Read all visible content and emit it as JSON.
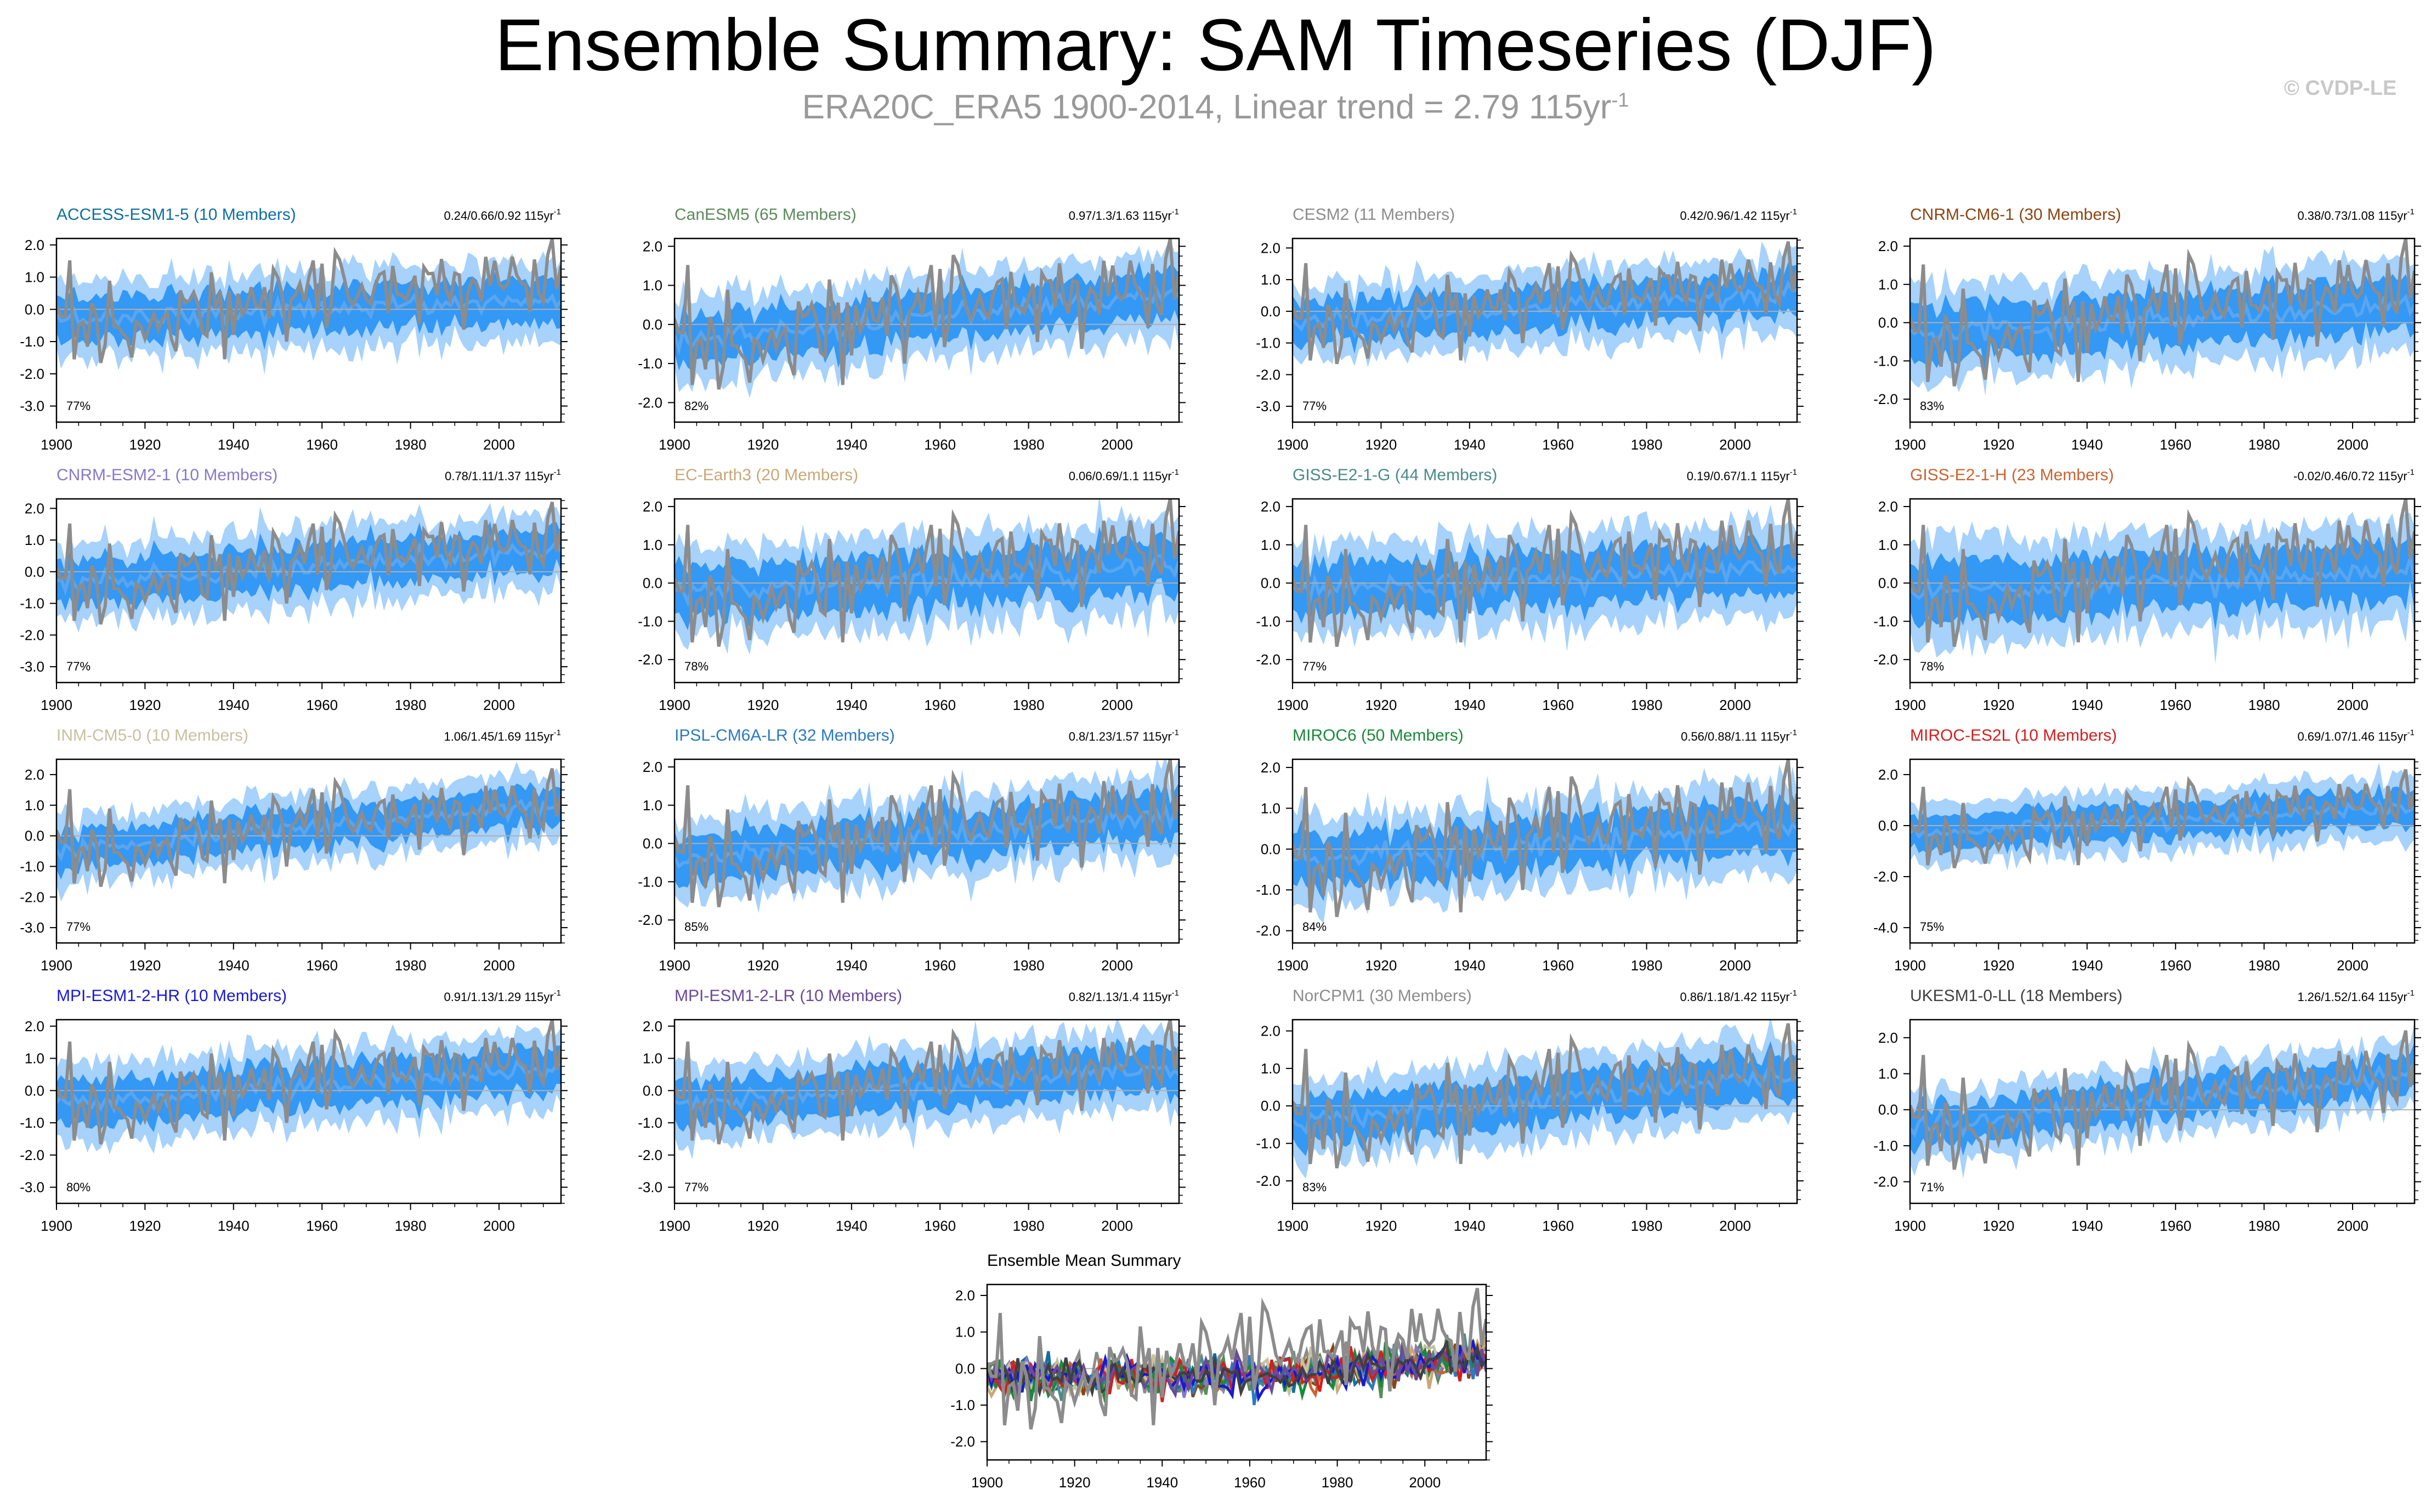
{
  "page": {
    "title": "Ensemble Summary: SAM Timeseries (DJF)",
    "subtitle_main": "ERA20C_ERA5 1900-2014, Linear trend = 2.79 115yr",
    "subtitle_sup": "-1",
    "watermark": "© CVDP-LE"
  },
  "colors": {
    "outer_band": "#a6d2fc",
    "inner_band": "#3498f5",
    "ensemble_mean": "#5aa6ee",
    "observations": "#8c8c8c"
  },
  "chart_data": [
    {
      "type": "area",
      "title": "ACCESS-ESM1-5 (10 Members)",
      "title_color": "#0f6fa0",
      "trend_text": "0.24/0.66/0.92 115yr",
      "trend_sup": "-1",
      "pct_label": "77%",
      "ylim": [
        -3.5,
        2.2
      ],
      "yticks": [
        2,
        1,
        0,
        -1,
        -2,
        -3
      ],
      "ytick_labels": [
        "2.0",
        "1.0",
        "0.0",
        "-1.0",
        "-2.0",
        "-3.0"
      ],
      "xlim": [
        1900,
        2014
      ],
      "xticks": [
        1900,
        1920,
        1940,
        1960,
        1980,
        2000
      ],
      "xtick_labels": [
        "1900",
        "1920",
        "1940",
        "1960",
        "1980",
        "2000"
      ],
      "mean_trend": [
        -0.3,
        0.3
      ],
      "spread": 1.0
    },
    {
      "type": "area",
      "title": "CanESM5 (65 Members)",
      "title_color": "#5a8a5a",
      "trend_text": "0.97/1.3/1.63 115yr",
      "trend_sup": "-1",
      "pct_label": "82%",
      "ylim": [
        -2.5,
        2.2
      ],
      "yticks": [
        2,
        1,
        0,
        -1,
        -2
      ],
      "ytick_labels": [
        "2.0",
        "1.0",
        "0.0",
        "-1.0",
        "-2.0"
      ],
      "xlim": [
        1900,
        2014
      ],
      "xticks": [
        1900,
        1920,
        1940,
        1960,
        1980,
        2000
      ],
      "xtick_labels": [
        "1900",
        "1920",
        "1940",
        "1960",
        "1980",
        "2000"
      ],
      "mean_trend": [
        -0.4,
        0.8
      ],
      "spread": 0.9
    },
    {
      "type": "area",
      "title": "CESM2 (11 Members)",
      "title_color": "#8c8c8c",
      "trend_text": "0.42/0.96/1.42 115yr",
      "trend_sup": "-1",
      "pct_label": "77%",
      "ylim": [
        -3.5,
        2.3
      ],
      "yticks": [
        2,
        1,
        0,
        -1,
        -2,
        -3
      ],
      "ytick_labels": [
        "2.0",
        "1.0",
        "0.0",
        "-1.0",
        "-2.0",
        "-3.0"
      ],
      "xlim": [
        1900,
        2014
      ],
      "xticks": [
        1900,
        1920,
        1940,
        1960,
        1980,
        2000
      ],
      "xtick_labels": [
        "1900",
        "1920",
        "1940",
        "1960",
        "1980",
        "2000"
      ],
      "mean_trend": [
        -0.4,
        0.6
      ],
      "spread": 1.0
    },
    {
      "type": "area",
      "title": "CNRM-CM6-1 (30 Members)",
      "title_color": "#8b4513",
      "trend_text": "0.38/0.73/1.08 115yr",
      "trend_sup": "-1",
      "pct_label": "83%",
      "ylim": [
        -2.6,
        2.2
      ],
      "yticks": [
        2,
        1,
        0,
        -1,
        -2
      ],
      "ytick_labels": [
        "2.0",
        "1.0",
        "0.0",
        "-1.0",
        "-2.0"
      ],
      "xlim": [
        1900,
        2014
      ],
      "xticks": [
        1900,
        1920,
        1940,
        1960,
        1980,
        2000
      ],
      "xtick_labels": [
        "1900",
        "1920",
        "1940",
        "1960",
        "1980",
        "2000"
      ],
      "mean_trend": [
        -0.3,
        0.5
      ],
      "spread": 1.0
    },
    {
      "type": "area",
      "title": "CNRM-ESM2-1 (10 Members)",
      "title_color": "#8878c8",
      "trend_text": "0.78/1.11/1.37 115yr",
      "trend_sup": "-1",
      "pct_label": "77%",
      "ylim": [
        -3.5,
        2.3
      ],
      "yticks": [
        2,
        1,
        0,
        -1,
        -2,
        -3
      ],
      "ytick_labels": [
        "2.0",
        "1.0",
        "0.0",
        "-1.0",
        "-2.0",
        "-3.0"
      ],
      "xlim": [
        1900,
        2014
      ],
      "xticks": [
        1900,
        1920,
        1940,
        1960,
        1980,
        2000
      ],
      "xtick_labels": [
        "1900",
        "1920",
        "1940",
        "1960",
        "1980",
        "2000"
      ],
      "mean_trend": [
        -0.4,
        0.7
      ],
      "spread": 1.0
    },
    {
      "type": "area",
      "title": "EC-Earth3 (20 Members)",
      "title_color": "#c8a878",
      "trend_text": "0.06/0.69/1.1 115yr",
      "trend_sup": "-1",
      "pct_label": "78%",
      "ylim": [
        -2.6,
        2.2
      ],
      "yticks": [
        2,
        1,
        0,
        -1,
        -2
      ],
      "ytick_labels": [
        "2.0",
        "1.0",
        "0.0",
        "-1.0",
        "-2.0"
      ],
      "xlim": [
        1900,
        2014
      ],
      "xticks": [
        1900,
        1920,
        1940,
        1960,
        1980,
        2000
      ],
      "xtick_labels": [
        "1900",
        "1920",
        "1940",
        "1960",
        "1980",
        "2000"
      ],
      "mean_trend": [
        -0.3,
        0.4
      ],
      "spread": 1.0
    },
    {
      "type": "area",
      "title": "GISS-E2-1-G (44 Members)",
      "title_color": "#4a8a8a",
      "trend_text": "0.19/0.67/1.1 115yr",
      "trend_sup": "-1",
      "pct_label": "77%",
      "ylim": [
        -2.6,
        2.2
      ],
      "yticks": [
        2,
        1,
        0,
        -1,
        -2
      ],
      "ytick_labels": [
        "2.0",
        "1.0",
        "0.0",
        "-1.0",
        "-2.0"
      ],
      "xlim": [
        1900,
        2014
      ],
      "xticks": [
        1900,
        1920,
        1940,
        1960,
        1980,
        2000
      ],
      "xtick_labels": [
        "1900",
        "1920",
        "1940",
        "1960",
        "1980",
        "2000"
      ],
      "mean_trend": [
        -0.2,
        0.4
      ],
      "spread": 1.0
    },
    {
      "type": "area",
      "title": "GISS-E2-1-H (23 Members)",
      "title_color": "#c86432",
      "trend_text": "-0.02/0.46/0.72 115yr",
      "trend_sup": "-1",
      "pct_label": "78%",
      "ylim": [
        -2.6,
        2.2
      ],
      "yticks": [
        2,
        1,
        0,
        -1,
        -2
      ],
      "ytick_labels": [
        "2.0",
        "1.0",
        "0.0",
        "-1.0",
        "-2.0"
      ],
      "xlim": [
        1900,
        2014
      ],
      "xticks": [
        1900,
        1920,
        1940,
        1960,
        1980,
        2000
      ],
      "xtick_labels": [
        "1900",
        "1920",
        "1940",
        "1960",
        "1980",
        "2000"
      ],
      "mean_trend": [
        -0.2,
        0.3
      ],
      "spread": 1.1
    },
    {
      "type": "area",
      "title": "INM-CM5-0 (10 Members)",
      "title_color": "#c8c0a0",
      "trend_text": "1.06/1.45/1.69 115yr",
      "trend_sup": "-1",
      "pct_label": "77%",
      "ylim": [
        -3.5,
        2.5
      ],
      "yticks": [
        2,
        1,
        0,
        -1,
        -2,
        -3
      ],
      "ytick_labels": [
        "2.0",
        "1.0",
        "0.0",
        "-1.0",
        "-2.0",
        "-3.0"
      ],
      "xlim": [
        1900,
        2014
      ],
      "xticks": [
        1900,
        1920,
        1940,
        1960,
        1980,
        2000
      ],
      "xtick_labels": [
        "1900",
        "1920",
        "1940",
        "1960",
        "1980",
        "2000"
      ],
      "mean_trend": [
        -0.5,
        1.0
      ],
      "spread": 0.9
    },
    {
      "type": "area",
      "title": "IPSL-CM6A-LR (32 Members)",
      "title_color": "#2a7ac0",
      "trend_text": "0.8/1.23/1.57 115yr",
      "trend_sup": "-1",
      "pct_label": "85%",
      "ylim": [
        -2.6,
        2.2
      ],
      "yticks": [
        2,
        1,
        0,
        -1,
        -2
      ],
      "ytick_labels": [
        "2.0",
        "1.0",
        "0.0",
        "-1.0",
        "-2.0"
      ],
      "xlim": [
        1900,
        2014
      ],
      "xticks": [
        1900,
        1920,
        1940,
        1960,
        1980,
        2000
      ],
      "xtick_labels": [
        "1900",
        "1920",
        "1940",
        "1960",
        "1980",
        "2000"
      ],
      "mean_trend": [
        -0.4,
        0.8
      ],
      "spread": 0.9
    },
    {
      "type": "area",
      "title": "MIROC6 (50 Members)",
      "title_color": "#1a8a3a",
      "trend_text": "0.56/0.88/1.11 115yr",
      "trend_sup": "-1",
      "pct_label": "84%",
      "ylim": [
        -2.3,
        2.2
      ],
      "yticks": [
        2,
        1,
        0,
        -1,
        -2
      ],
      "ytick_labels": [
        "2.0",
        "1.0",
        "0.0",
        "-1.0",
        "-2.0"
      ],
      "xlim": [
        1900,
        2014
      ],
      "xticks": [
        1900,
        1920,
        1940,
        1960,
        1980,
        2000
      ],
      "xtick_labels": [
        "1900",
        "1920",
        "1940",
        "1960",
        "1980",
        "2000"
      ],
      "mean_trend": [
        -0.3,
        0.6
      ],
      "spread": 0.9
    },
    {
      "type": "area",
      "title": "MIROC-ES2L (10 Members)",
      "title_color": "#d02020",
      "trend_text": "0.69/1.07/1.46 115yr",
      "trend_sup": "-1",
      "pct_label": "75%",
      "ylim": [
        -4.6,
        2.6
      ],
      "yticks": [
        2,
        0,
        -2,
        -4
      ],
      "ytick_labels": [
        "2.0",
        "0.0",
        "-2.0",
        "-4.0"
      ],
      "xlim": [
        1900,
        2014
      ],
      "xticks": [
        1900,
        1920,
        1940,
        1960,
        1980,
        2000
      ],
      "xtick_labels": [
        "1900",
        "1920",
        "1940",
        "1960",
        "1980",
        "2000"
      ],
      "mean_trend": [
        -0.3,
        0.7
      ],
      "spread": 1.0
    },
    {
      "type": "area",
      "title": "MPI-ESM1-2-HR (10 Members)",
      "title_color": "#1a1ad0",
      "trend_text": "0.91/1.13/1.29 115yr",
      "trend_sup": "-1",
      "pct_label": "80%",
      "ylim": [
        -3.5,
        2.2
      ],
      "yticks": [
        2,
        1,
        0,
        -1,
        -2,
        -3
      ],
      "ytick_labels": [
        "2.0",
        "1.0",
        "0.0",
        "-1.0",
        "-2.0",
        "-3.0"
      ],
      "xlim": [
        1900,
        2014
      ],
      "xticks": [
        1900,
        1920,
        1940,
        1960,
        1980,
        2000
      ],
      "xtick_labels": [
        "1900",
        "1920",
        "1940",
        "1960",
        "1980",
        "2000"
      ],
      "mean_trend": [
        -0.4,
        0.7
      ],
      "spread": 1.0
    },
    {
      "type": "area",
      "title": "MPI-ESM1-2-LR (10 Members)",
      "title_color": "#6a4a9a",
      "trend_text": "0.82/1.13/1.4 115yr",
      "trend_sup": "-1",
      "pct_label": "77%",
      "ylim": [
        -3.5,
        2.2
      ],
      "yticks": [
        2,
        1,
        0,
        -1,
        -2,
        -3
      ],
      "ytick_labels": [
        "2.0",
        "1.0",
        "0.0",
        "-1.0",
        "-2.0",
        "-3.0"
      ],
      "xlim": [
        1900,
        2014
      ],
      "xticks": [
        1900,
        1920,
        1940,
        1960,
        1980,
        2000
      ],
      "xtick_labels": [
        "1900",
        "1920",
        "1940",
        "1960",
        "1980",
        "2000"
      ],
      "mean_trend": [
        -0.4,
        0.7
      ],
      "spread": 1.0
    },
    {
      "type": "area",
      "title": "NorCPM1 (30 Members)",
      "title_color": "#8c8c8c",
      "trend_text": "0.86/1.18/1.42 115yr",
      "trend_sup": "-1",
      "pct_label": "83%",
      "ylim": [
        -2.6,
        2.3
      ],
      "yticks": [
        2,
        1,
        0,
        -1,
        -2
      ],
      "ytick_labels": [
        "2.0",
        "1.0",
        "0.0",
        "-1.0",
        "-2.0"
      ],
      "xlim": [
        1900,
        2014
      ],
      "xticks": [
        1900,
        1920,
        1940,
        1960,
        1980,
        2000
      ],
      "xtick_labels": [
        "1900",
        "1920",
        "1940",
        "1960",
        "1980",
        "2000"
      ],
      "mean_trend": [
        -0.4,
        0.8
      ],
      "spread": 0.9
    },
    {
      "type": "area",
      "title": "UKESM1-0-LL (18 Members)",
      "title_color": "#404040",
      "trend_text": "1.26/1.52/1.64 115yr",
      "trend_sup": "-1",
      "pct_label": "71%",
      "ylim": [
        -2.6,
        2.5
      ],
      "yticks": [
        2,
        1,
        0,
        -1,
        -2
      ],
      "ytick_labels": [
        "2.0",
        "1.0",
        "0.0",
        "-1.0",
        "-2.0"
      ],
      "xlim": [
        1900,
        2014
      ],
      "xticks": [
        1900,
        1920,
        1940,
        1960,
        1980,
        2000
      ],
      "xtick_labels": [
        "1900",
        "1920",
        "1940",
        "1960",
        "1980",
        "2000"
      ],
      "mean_trend": [
        -0.5,
        1.0
      ],
      "spread": 0.8
    },
    {
      "type": "line",
      "title": "Ensemble Mean Summary",
      "title_color": "#000000",
      "trend_text": "",
      "trend_sup": "",
      "pct_label": "",
      "ylim": [
        -2.5,
        2.3
      ],
      "yticks": [
        2,
        1,
        0,
        -1,
        -2
      ],
      "ytick_labels": [
        "2.0",
        "1.0",
        "0.0",
        "-1.0",
        "-2.0"
      ],
      "xlim": [
        1900,
        2014
      ],
      "xticks": [
        1900,
        1920,
        1940,
        1960,
        1980,
        2000
      ],
      "xtick_labels": [
        "1900",
        "1920",
        "1940",
        "1960",
        "1980",
        "2000"
      ],
      "series_colors": [
        "#0f6fa0",
        "#5a8a5a",
        "#8c8c8c",
        "#8b4513",
        "#8878c8",
        "#c8a878",
        "#4a8a8a",
        "#c86432",
        "#c8c0a0",
        "#2a7ac0",
        "#1a8a3a",
        "#d02020",
        "#1a1ad0",
        "#6a4a9a",
        "#404040"
      ]
    }
  ]
}
